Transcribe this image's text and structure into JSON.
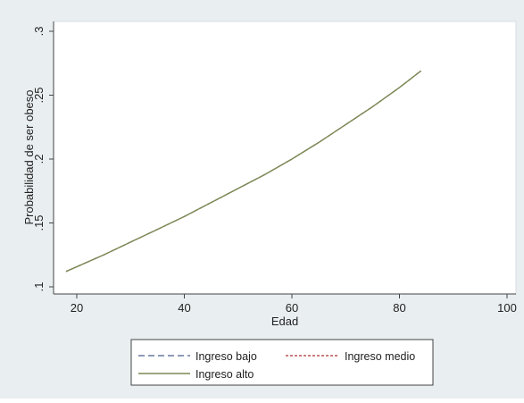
{
  "chart_data": {
    "type": "line",
    "title": "",
    "xlabel": "Edad",
    "ylabel": "Probabilidad de ser obeso",
    "xlim": [
      18,
      100
    ],
    "ylim": [
      0.1,
      0.3
    ],
    "x_ticks": [
      20,
      40,
      60,
      80,
      100
    ],
    "x_tick_labels": [
      "20",
      "40",
      "60",
      "80",
      "100"
    ],
    "y_ticks": [
      0.1,
      0.15,
      0.2,
      0.25,
      0.3
    ],
    "y_tick_labels": [
      ".1",
      ".15",
      ".2",
      ".25",
      ".3"
    ],
    "grid": false,
    "legend_position": "bottom",
    "series": [
      {
        "name": "Ingreso bajo",
        "color": "#4a5d8a",
        "dash": "dashed",
        "x": [
          18,
          25,
          30,
          35,
          40,
          45,
          50,
          55,
          60,
          65,
          70,
          75,
          80,
          84
        ],
        "y": [
          0.112,
          0.125,
          0.135,
          0.145,
          0.155,
          0.166,
          0.177,
          0.188,
          0.2,
          0.213,
          0.227,
          0.241,
          0.256,
          0.269
        ]
      },
      {
        "name": "Ingreso medio",
        "color": "#b03030",
        "dash": "dotted",
        "x": [
          18,
          25,
          30,
          35,
          40,
          45,
          50,
          55,
          60,
          65,
          70,
          75,
          80,
          84
        ],
        "y": [
          0.112,
          0.125,
          0.135,
          0.145,
          0.155,
          0.166,
          0.177,
          0.188,
          0.2,
          0.213,
          0.227,
          0.241,
          0.256,
          0.269
        ]
      },
      {
        "name": "Ingreso alto",
        "color": "#7a8a55",
        "dash": "solid",
        "x": [
          18,
          25,
          30,
          35,
          40,
          45,
          50,
          55,
          60,
          65,
          70,
          75,
          80,
          84
        ],
        "y": [
          0.112,
          0.125,
          0.135,
          0.145,
          0.155,
          0.166,
          0.177,
          0.188,
          0.2,
          0.213,
          0.227,
          0.241,
          0.256,
          0.269
        ]
      }
    ]
  },
  "colors": {
    "outer_background": "#e9eef1",
    "plot_background": "#ffffff",
    "axis": "#444444"
  }
}
